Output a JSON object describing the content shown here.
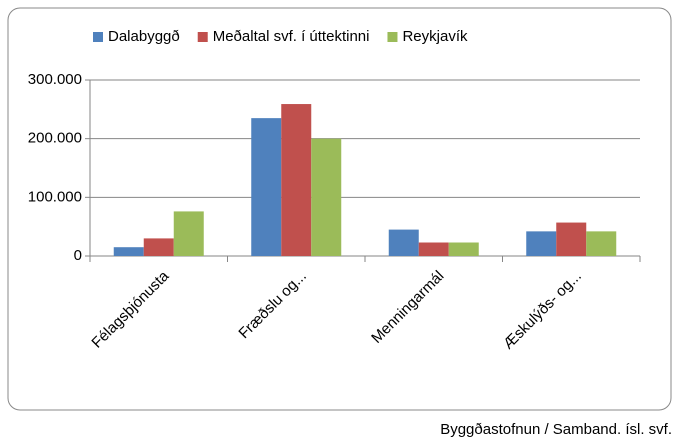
{
  "chart_data": {
    "type": "bar",
    "categories": [
      "Félagsþjónusta",
      "Fræðslu og...",
      "Menningarmál",
      "Æskulýðs- og..."
    ],
    "series": [
      {
        "name": "Dalabyggð",
        "color": "#4f81bd",
        "values": [
          15000,
          235000,
          45000,
          42000
        ]
      },
      {
        "name": "Meðaltal svf. í úttektinni",
        "color": "#c0504d",
        "values": [
          30000,
          259000,
          23000,
          57000
        ]
      },
      {
        "name": "Reykjavík",
        "color": "#9bbb59",
        "values": [
          76000,
          200000,
          23000,
          42000
        ]
      }
    ],
    "ylim": [
      0,
      300000
    ],
    "yticks": [
      0,
      {
        "value": 100000,
        "label": "100.000"
      },
      {
        "value": 200000,
        "label": "200.000"
      },
      {
        "value": 300000,
        "label": "300.000"
      }
    ],
    "grid": true,
    "legend": "top",
    "source": "Byggðastofnun / Samband. ísl. svf."
  }
}
